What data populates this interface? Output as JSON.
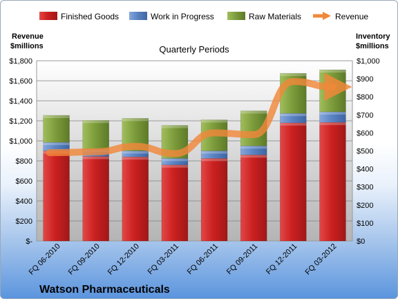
{
  "chart_data": {
    "type": "bar",
    "stacked": true,
    "categories": [
      "FQ 06-2010",
      "FQ 09-2010",
      "FQ 12-2010",
      "FQ 03-2011",
      "FQ 06-2011",
      "FQ 09-2011",
      "FQ 12-2011",
      "FQ 03-2012"
    ],
    "series": [
      {
        "name": "Finished Goods",
        "axis": "left",
        "color": "#cc2222",
        "values": [
          900,
          845,
          840,
          760,
          825,
          860,
          1180,
          1185
        ]
      },
      {
        "name": "Work in Progress",
        "axis": "left",
        "color": "#5b84c4",
        "values": [
          85,
          70,
          60,
          65,
          75,
          90,
          95,
          105
        ]
      },
      {
        "name": "Raw Materials",
        "axis": "left",
        "color": "#7a9b36",
        "values": [
          270,
          290,
          325,
          330,
          310,
          350,
          400,
          420
        ]
      }
    ],
    "line_series": {
      "name": "Revenue",
      "axis": "right",
      "color": "#f0883a",
      "values": [
        490,
        495,
        525,
        485,
        600,
        590,
        885,
        855
      ]
    },
    "title": "Quarterly Periods",
    "ylabel_left": [
      "Revenue",
      "$millions"
    ],
    "ylabel_right": [
      "Inventory",
      "$millions"
    ],
    "ylim_left": [
      0,
      1800
    ],
    "yticks_left": [
      "$-",
      "$200",
      "$400",
      "$600",
      "$800",
      "$1,000",
      "$1,200",
      "$1,400",
      "$1,600",
      "$1,800"
    ],
    "ylim_right": [
      0,
      1000
    ],
    "yticks_right": [
      "$0",
      "$100",
      "$200",
      "$300",
      "$400",
      "$500",
      "$600",
      "$700",
      "$800",
      "$900",
      "$1,000"
    ],
    "grid": true,
    "legend_position": "top"
  },
  "company": "Watson Pharmaceuticals"
}
